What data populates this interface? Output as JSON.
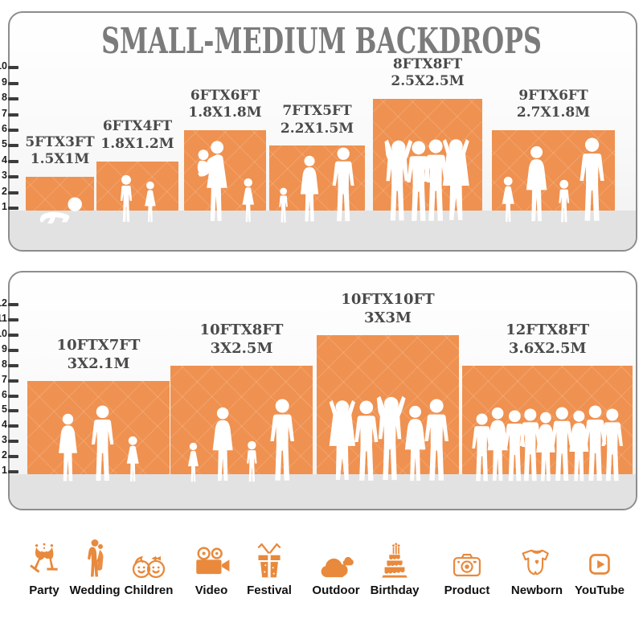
{
  "title": "SMALL-MEDIUM BACKDROPS",
  "colors": {
    "backdrop_orange": "#EF9150",
    "icon_orange": "#E8893C",
    "title_gray": "#7B7B7B",
    "label_gray": "#4A4A4A",
    "floor_gray": "#E2E2E2"
  },
  "panels": [
    {
      "name": "small-medium-backdrops",
      "ruler_ticks": [
        1,
        2,
        3,
        4,
        5,
        6,
        7,
        8,
        9,
        10
      ],
      "backdrops": [
        {
          "size_ft": "5FTX3FT",
          "size_m": "1.5X1M",
          "width_ft": 5,
          "height_ft": 3,
          "figures": [
            "crawling-baby"
          ]
        },
        {
          "size_ft": "6FTX4FT",
          "size_m": "1.8X1.2M",
          "width_ft": 6,
          "height_ft": 4,
          "figures": [
            "boy",
            "girl"
          ]
        },
        {
          "size_ft": "6FTX6FT",
          "size_m": "1.8X1.8M",
          "width_ft": 6,
          "height_ft": 6,
          "figures": [
            "mother-holding-child",
            "girl"
          ]
        },
        {
          "size_ft": "7FTX5FT",
          "size_m": "2.2X1.5M",
          "width_ft": 7,
          "height_ft": 5,
          "figures": [
            "toddler",
            "woman",
            "man"
          ]
        },
        {
          "size_ft": "8FTX8FT",
          "size_m": "2.5X2.5M",
          "width_ft": 8,
          "height_ft": 8,
          "figures": [
            "man-arms-up",
            "man",
            "man",
            "woman-arms-up"
          ]
        },
        {
          "size_ft": "9FTX6FT",
          "size_m": "2.7X1.8M",
          "width_ft": 9,
          "height_ft": 6,
          "figures": [
            "girl",
            "woman",
            "child",
            "man"
          ]
        }
      ]
    },
    {
      "name": "medium-large-backdrops",
      "ruler_ticks": [
        1,
        2,
        3,
        4,
        5,
        6,
        7,
        8,
        9,
        10,
        11,
        12
      ],
      "backdrops": [
        {
          "size_ft": "10FTX7FT",
          "size_m": "3X2.1M",
          "width_ft": 10,
          "height_ft": 7,
          "figures": [
            "woman",
            "man",
            "girl"
          ]
        },
        {
          "size_ft": "10FTX8FT",
          "size_m": "3X2.5M",
          "width_ft": 10,
          "height_ft": 8,
          "figures": [
            "girl",
            "woman",
            "child",
            "man"
          ]
        },
        {
          "size_ft": "10FTX10FT",
          "size_m": "3X3M",
          "width_ft": 10,
          "height_ft": 10,
          "figures": [
            "woman-arms-up",
            "man",
            "man-arms-up",
            "woman",
            "man"
          ]
        },
        {
          "size_ft": "12FTX8FT",
          "size_m": "3.6X2.5M",
          "width_ft": 12,
          "height_ft": 8,
          "figures": [
            "man",
            "woman",
            "man",
            "man",
            "woman",
            "man",
            "woman",
            "man",
            "man"
          ]
        }
      ]
    }
  ],
  "categories": [
    {
      "label": "Party",
      "icon": "party-toast-icon"
    },
    {
      "label": "Wedding",
      "icon": "wedding-couple-icon"
    },
    {
      "label": "Children",
      "icon": "children-faces-icon"
    },
    {
      "label": "Video",
      "icon": "video-camera-icon"
    },
    {
      "label": "Festival",
      "icon": "gift-box-icon"
    },
    {
      "label": "Outdoor",
      "icon": "clouds-icon"
    },
    {
      "label": "Birthday",
      "icon": "birthday-cake-icon"
    },
    {
      "label": "Product",
      "icon": "camera-icon"
    },
    {
      "label": "Newborn",
      "icon": "baby-onesie-icon"
    },
    {
      "label": "YouTube",
      "icon": "youtube-play-icon"
    }
  ]
}
